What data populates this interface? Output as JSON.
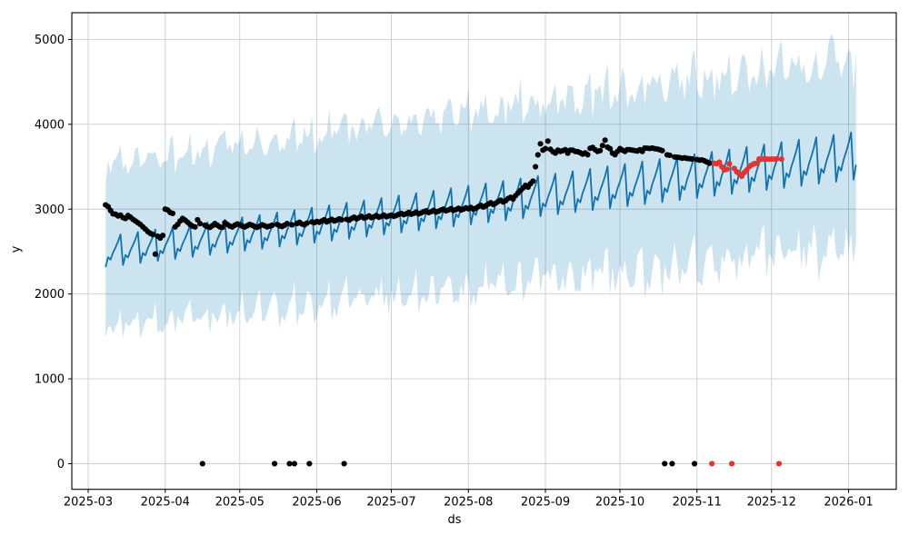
{
  "chart_data": {
    "type": "line",
    "title": "",
    "xlabel": "ds",
    "ylabel": "y",
    "legend": "none",
    "grid": true,
    "x_tick_labels": [
      "2025-03",
      "2025-04",
      "2025-05",
      "2025-06",
      "2025-07",
      "2025-08",
      "2025-09",
      "2025-10",
      "2025-11",
      "2025-12",
      "2026-01"
    ],
    "x_tick_days_from_2025_03_01": [
      0,
      31,
      61,
      92,
      122,
      153,
      184,
      214,
      245,
      275,
      306
    ],
    "y_ticks": [
      0,
      1000,
      2000,
      3000,
      4000,
      5000
    ],
    "ylim": [
      -302,
      5315
    ],
    "xlim_days_from_2025_03_01": [
      -6.6,
      325.2
    ],
    "colors": {
      "forecast_line": "#0f72b2",
      "interval_fill": "#0072B2",
      "interval_opacity": 0.2,
      "observed_dot": "#000000",
      "anomaly_dot": "#e4342f",
      "grid_line": "#cccccc",
      "spine": "#000000",
      "background": "#ffffff"
    },
    "observed": {
      "start_ds": "2025-03-08",
      "note": "daily actuals (black dots); zero_idx entries are plotted at y=0",
      "values": [
        3050,
        3030,
        2985,
        2945,
        2940,
        2920,
        2930,
        2900,
        2890,
        2925,
        2905,
        2880,
        2860,
        2840,
        2820,
        2790,
        2765,
        2735,
        2715,
        2700,
        2470,
        2680,
        2660,
        2690,
        3000,
        2990,
        2960,
        2950,
        2790,
        2820,
        2860,
        2890,
        2870,
        2845,
        2820,
        2800,
        2790,
        2875,
        2830,
        2810,
        2810,
        2795,
        2785,
        2805,
        2830,
        2810,
        2790,
        2785,
        2840,
        2820,
        2800,
        2790,
        2810,
        2825,
        2815,
        2800,
        2790,
        2805,
        2820,
        2810,
        2795,
        2785,
        2800,
        2815,
        2805,
        2790,
        2800,
        2810,
        2820,
        2820,
        2805,
        2795,
        2810,
        2830,
        2815,
        2815,
        2825,
        2830,
        2845,
        2825,
        2815,
        2835,
        2840,
        2850,
        2840,
        2855,
        2845,
        2860,
        2875,
        2850,
        2865,
        2880,
        2860,
        2870,
        2885,
        2875,
        2880,
        2880,
        2870,
        2890,
        2905,
        2885,
        2900,
        2915,
        2895,
        2905,
        2920,
        2900,
        2910,
        2925,
        2905,
        2915,
        2930,
        2910,
        2920,
        2930,
        2915,
        2925,
        2940,
        2950,
        2935,
        2945,
        2960,
        2940,
        2950,
        2965,
        2945,
        2955,
        2970,
        2980,
        2960,
        2970,
        2985,
        2965,
        2975,
        2990,
        3000,
        2980,
        2990,
        3005,
        2985,
        2995,
        3010,
        2990,
        3000,
        3015,
        3005,
        3020,
        3000,
        3010,
        3030,
        3045,
        3025,
        3040,
        3060,
        3075,
        3055,
        3070,
        3090,
        3105,
        3085,
        3100,
        3125,
        3140,
        3120,
        3160,
        3190,
        3220,
        3250,
        3280,
        3260,
        3300,
        3330,
        3500,
        3640,
        3770,
        3695,
        3713,
        3802,
        3706,
        3677,
        3660,
        3695,
        3680,
        3690,
        3700,
        3660,
        3695,
        3695,
        3680,
        3677,
        3665,
        3649,
        3663,
        3642,
        3717,
        3727,
        3700,
        3680,
        3690,
        3750,
        3813,
        3731,
        3713,
        3660,
        3642,
        3680,
        3713,
        3695,
        3680,
        3702,
        3700,
        3695,
        3690,
        3685,
        3700,
        3680,
        3720,
        3718,
        3715,
        3720,
        3712,
        3708,
        3700,
        3690,
        3660,
        3640,
        3635,
        3630,
        3615,
        3612,
        3608,
        3600,
        3605,
        3598,
        3595,
        3590,
        3585,
        3585,
        3577,
        3580,
        3570,
        3555,
        3542
      ],
      "zero_idx": [
        39,
        68,
        74,
        76,
        82,
        96,
        225,
        228,
        237
      ]
    },
    "anomalies": {
      "start_ds": "2025-11-07",
      "note": "daily actuals flagged red; zero_idx entries plotted at y=0",
      "values": [
        3540,
        3540,
        3535,
        3553,
        3500,
        3463,
        3470,
        3535,
        3500,
        3480,
        3440,
        3415,
        3388,
        3430,
        3460,
        3500,
        3520,
        3535,
        3540,
        3590,
        3588,
        3592,
        3590,
        3588,
        3591,
        3589,
        3592,
        3590,
        3590
      ],
      "zero_idx": [
        0,
        8,
        27
      ]
    },
    "forecast": {
      "start_ds": "2025-03-08",
      "end_ds": "2026-01-04",
      "days": 303,
      "trend_start": 2510,
      "trend_end": 3650,
      "weekly_offsets": [
        -240,
        -100,
        -140,
        -40,
        30,
        110,
        210
      ],
      "amp_scale_start": 0.8,
      "amp_scale_end": 1.25
    },
    "interval": {
      "upper_offset_start": 1040,
      "upper_offset_end": 1150,
      "lower_offset_start": -870,
      "lower_offset_end": -1060,
      "weekly_factor": 0.8,
      "noise_start": 95,
      "noise_end": 200,
      "seed": 42
    }
  }
}
